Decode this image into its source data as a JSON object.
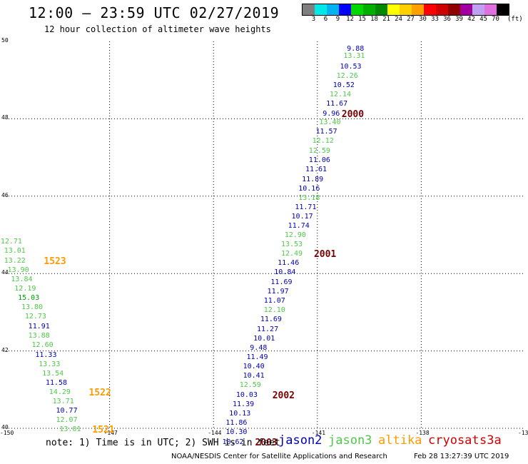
{
  "header": {
    "title": "12:00 – 23:59 UTC 02/27/2019",
    "subtitle": "12 hour collection of altimeter wave heights"
  },
  "color_scale": {
    "colors": [
      "#7f7f7f",
      "#00e8e8",
      "#00b4f0",
      "#0000ff",
      "#00d800",
      "#00b000",
      "#008800",
      "#ffff00",
      "#ffd000",
      "#ff9f00",
      "#ff0000",
      "#d00000",
      "#900000",
      "#a000a0",
      "#c0a0f0",
      "#e070e0",
      "#000000"
    ],
    "labels": [
      "3",
      "6",
      "9",
      "12",
      "15",
      "18",
      "21",
      "24",
      "27",
      "30",
      "33",
      "36",
      "39",
      "42",
      "45",
      "70"
    ],
    "units": "(ft)"
  },
  "axes": {
    "y_labels": [
      "50",
      "48",
      "46",
      "44",
      "42",
      "40"
    ],
    "x_labels": [
      "-150",
      "-147",
      "-144",
      "-141",
      "-138",
      "-135"
    ]
  },
  "colors": {
    "jason2": "#0000b4",
    "jason3": "#4ec848",
    "altika": "#ff9a00",
    "cryosat": "#d00000",
    "pass": "#780000"
  },
  "observations": [
    {
      "v": "9.88",
      "lon": -139.9,
      "lat": 49.8,
      "s": "j2"
    },
    {
      "v": "13.31",
      "lon": -140.0,
      "lat": 49.61,
      "s": "j3"
    },
    {
      "v": "10.53",
      "lon": -140.1,
      "lat": 49.34,
      "s": "j2"
    },
    {
      "v": "12.26",
      "lon": -140.2,
      "lat": 49.1,
      "s": "j3"
    },
    {
      "v": "10.52",
      "lon": -140.3,
      "lat": 48.85,
      "s": "j2"
    },
    {
      "v": "12.14",
      "lon": -140.4,
      "lat": 48.62,
      "s": "j3"
    },
    {
      "v": "11.67",
      "lon": -140.5,
      "lat": 48.37,
      "s": "j2"
    },
    {
      "v": "9.96",
      "lon": -140.6,
      "lat": 48.12,
      "s": "j2"
    },
    {
      "v": "13.40",
      "lon": -140.7,
      "lat": 47.9,
      "s": "j3"
    },
    {
      "v": "11.57",
      "lon": -140.8,
      "lat": 47.65,
      "s": "j2"
    },
    {
      "v": "12.12",
      "lon": -140.9,
      "lat": 47.41,
      "s": "j3"
    },
    {
      "v": "12.59",
      "lon": -141.0,
      "lat": 47.15,
      "s": "j3"
    },
    {
      "v": "11.06",
      "lon": -141.0,
      "lat": 46.91,
      "s": "j2"
    },
    {
      "v": "11.61",
      "lon": -141.1,
      "lat": 46.67,
      "s": "j2"
    },
    {
      "v": "11.89",
      "lon": -141.2,
      "lat": 46.42,
      "s": "j2"
    },
    {
      "v": "10.16",
      "lon": -141.3,
      "lat": 46.19,
      "s": "j2"
    },
    {
      "v": "13.18",
      "lon": -141.3,
      "lat": 45.95,
      "s": "j3"
    },
    {
      "v": "11.71",
      "lon": -141.4,
      "lat": 45.71,
      "s": "j2"
    },
    {
      "v": "10.17",
      "lon": -141.5,
      "lat": 45.47,
      "s": "j2"
    },
    {
      "v": "11.74",
      "lon": -141.6,
      "lat": 45.23,
      "s": "j2"
    },
    {
      "v": "12.90",
      "lon": -141.7,
      "lat": 44.98,
      "s": "j3"
    },
    {
      "v": "13.53",
      "lon": -141.8,
      "lat": 44.74,
      "s": "j3"
    },
    {
      "v": "12.49",
      "lon": -141.8,
      "lat": 44.5,
      "s": "j3"
    },
    {
      "v": "11.46",
      "lon": -141.9,
      "lat": 44.26,
      "s": "j2"
    },
    {
      "v": "10.84",
      "lon": -142.0,
      "lat": 44.02,
      "s": "j2"
    },
    {
      "v": "11.69",
      "lon": -142.1,
      "lat": 43.77,
      "s": "j2"
    },
    {
      "v": "11.97",
      "lon": -142.2,
      "lat": 43.53,
      "s": "j2"
    },
    {
      "v": "11.07",
      "lon": -142.3,
      "lat": 43.29,
      "s": "j2"
    },
    {
      "v": "12.10",
      "lon": -142.3,
      "lat": 43.04,
      "s": "j3"
    },
    {
      "v": "11.69",
      "lon": -142.4,
      "lat": 42.8,
      "s": "j2"
    },
    {
      "v": "11.27",
      "lon": -142.5,
      "lat": 42.55,
      "s": "j2"
    },
    {
      "v": "10.01",
      "lon": -142.6,
      "lat": 42.31,
      "s": "j2"
    },
    {
      "v": "9.48",
      "lon": -142.7,
      "lat": 42.07,
      "s": "j2"
    },
    {
      "v": "11.49",
      "lon": -142.8,
      "lat": 41.83,
      "s": "j2"
    },
    {
      "v": "10.40",
      "lon": -142.9,
      "lat": 41.58,
      "s": "j2"
    },
    {
      "v": "10.41",
      "lon": -142.9,
      "lat": 41.34,
      "s": "j2"
    },
    {
      "v": "12.59",
      "lon": -143.0,
      "lat": 41.1,
      "s": "j3"
    },
    {
      "v": "10.03",
      "lon": -143.1,
      "lat": 40.85,
      "s": "j2"
    },
    {
      "v": "11.39",
      "lon": -143.2,
      "lat": 40.61,
      "s": "j2"
    },
    {
      "v": "10.13",
      "lon": -143.3,
      "lat": 40.37,
      "s": "j2"
    },
    {
      "v": "11.86",
      "lon": -143.4,
      "lat": 40.12,
      "s": "j2"
    },
    {
      "v": "10.30",
      "lon": -143.4,
      "lat": 39.89,
      "s": "j2"
    },
    {
      "v": "10.62",
      "lon": -143.5,
      "lat": 39.64,
      "s": "j2"
    },
    {
      "v": "12.71",
      "lon": -149.9,
      "lat": 44.81,
      "s": "j3"
    },
    {
      "v": "13.01",
      "lon": -149.8,
      "lat": 44.57,
      "s": "j3"
    },
    {
      "v": "13.22",
      "lon": -149.8,
      "lat": 44.32,
      "s": "j3"
    },
    {
      "v": "13.90",
      "lon": -149.7,
      "lat": 44.08,
      "s": "j3"
    },
    {
      "v": "13.84",
      "lon": -149.6,
      "lat": 43.84,
      "s": "j3"
    },
    {
      "v": "12.19",
      "lon": -149.5,
      "lat": 43.59,
      "s": "j3"
    },
    {
      "v": "15.03",
      "lon": -149.4,
      "lat": 43.35,
      "s": "j15"
    },
    {
      "v": "13.80",
      "lon": -149.3,
      "lat": 43.11,
      "s": "j3"
    },
    {
      "v": "12.73",
      "lon": -149.2,
      "lat": 42.87,
      "s": "j3"
    },
    {
      "v": "11.91",
      "lon": -149.1,
      "lat": 42.62,
      "s": "j2"
    },
    {
      "v": "13.88",
      "lon": -149.1,
      "lat": 42.38,
      "s": "j3"
    },
    {
      "v": "12.60",
      "lon": -149.0,
      "lat": 42.14,
      "s": "j3"
    },
    {
      "v": "11.33",
      "lon": -148.9,
      "lat": 41.89,
      "s": "j2"
    },
    {
      "v": "13.33",
      "lon": -148.8,
      "lat": 41.65,
      "s": "j3"
    },
    {
      "v": "13.54",
      "lon": -148.7,
      "lat": 41.41,
      "s": "j3"
    },
    {
      "v": "11.58",
      "lon": -148.6,
      "lat": 41.17,
      "s": "j2"
    },
    {
      "v": "14.29",
      "lon": -148.5,
      "lat": 40.92,
      "s": "j3"
    },
    {
      "v": "13.71",
      "lon": -148.4,
      "lat": 40.68,
      "s": "j3"
    },
    {
      "v": "10.77",
      "lon": -148.3,
      "lat": 40.44,
      "s": "j2"
    },
    {
      "v": "12.07",
      "lon": -148.3,
      "lat": 40.2,
      "s": "j3"
    },
    {
      "v": "13.01",
      "lon": -148.2,
      "lat": 39.96,
      "s": "j3"
    }
  ],
  "pass_labels": [
    {
      "text": "2000",
      "lon": -140.3,
      "lat": 48.12,
      "c": "pass"
    },
    {
      "text": "2001",
      "lon": -141.1,
      "lat": 44.5,
      "c": "pass"
    },
    {
      "text": "2002",
      "lon": -142.3,
      "lat": 40.85,
      "c": "pass"
    },
    {
      "text": "2003",
      "lon": -142.8,
      "lat": 39.64,
      "c": "pass"
    },
    {
      "text": "1523",
      "lon": -148.9,
      "lat": 44.32,
      "c": "altika"
    },
    {
      "text": "1522",
      "lon": -147.6,
      "lat": 40.92,
      "c": "altika"
    },
    {
      "text": "1521",
      "lon": -147.5,
      "lat": 39.96,
      "c": "altika"
    }
  ],
  "footer": {
    "note": "note: 1) Time is in UTC; 2) SWH is in feet",
    "legend": [
      {
        "label": "jason2",
        "c": "jason2"
      },
      {
        "label": "jason3",
        "c": "jason3"
      },
      {
        "label": "altika",
        "c": "altika"
      },
      {
        "label": "cryosat",
        "c": "cryosat"
      },
      {
        "label": "s3a",
        "c": "cryosat"
      }
    ],
    "credit": "NOAA/NESDIS Center for Satellite Applications and Research",
    "timestamp": "Feb 28 13:27:39 UTC 2019"
  }
}
